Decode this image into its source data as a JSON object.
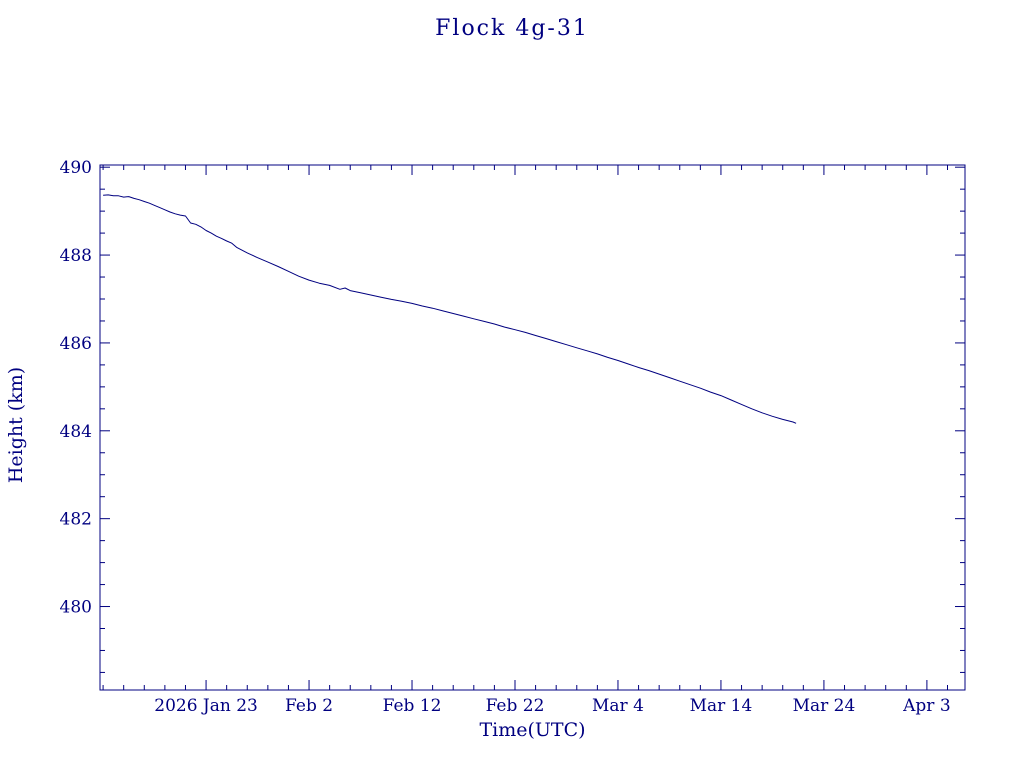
{
  "chart_data": {
    "type": "line",
    "title": "Flock 4g-31",
    "xlabel": "Time(UTC)",
    "ylabel": "Height (km)",
    "color": "#000080",
    "x_unit": "days since first plotted point (approx 2026 Jan 13)",
    "xlim": [
      -0.3,
      83.7
    ],
    "ylim": [
      478.1,
      490.05
    ],
    "x_minor_step": 2,
    "y_minor_step": 0.5,
    "y_ticks": [
      480,
      482,
      484,
      486,
      488,
      490
    ],
    "x_ticks": [
      {
        "x": 10,
        "label": "2026 Jan 23"
      },
      {
        "x": 20,
        "label": "Feb 2"
      },
      {
        "x": 30,
        "label": "Feb 12"
      },
      {
        "x": 40,
        "label": "Feb 22"
      },
      {
        "x": 50,
        "label": "Mar 4"
      },
      {
        "x": 60,
        "label": "Mar 14"
      },
      {
        "x": 70,
        "label": "Mar 24"
      },
      {
        "x": 80,
        "label": "Apr 3"
      }
    ],
    "x": [
      0,
      0.5,
      1,
      1.5,
      2,
      2.5,
      3,
      3.5,
      4,
      4.5,
      5,
      5.5,
      6,
      6.5,
      7,
      7.5,
      8,
      8.5,
      9,
      9.5,
      10,
      10.5,
      11,
      11.5,
      12,
      12.5,
      13,
      14,
      15,
      16,
      17,
      18,
      19,
      20,
      21,
      22,
      23,
      23.5,
      24,
      25,
      26,
      27,
      28,
      29,
      30,
      31,
      32,
      33,
      34,
      35,
      36,
      37,
      38,
      39,
      40,
      41,
      42,
      43,
      44,
      45,
      46,
      47,
      48,
      49,
      50,
      51,
      52,
      53,
      54,
      55,
      56,
      57,
      58,
      59,
      60,
      61,
      62,
      63,
      64,
      65,
      66,
      67,
      67.3
    ],
    "y": [
      489.36,
      489.37,
      489.35,
      489.35,
      489.32,
      489.33,
      489.29,
      489.26,
      489.22,
      489.18,
      489.13,
      489.08,
      489.03,
      488.98,
      488.94,
      488.91,
      488.89,
      488.73,
      488.7,
      488.64,
      488.56,
      488.5,
      488.43,
      488.38,
      488.32,
      488.27,
      488.17,
      488.05,
      487.94,
      487.84,
      487.74,
      487.63,
      487.52,
      487.43,
      487.36,
      487.31,
      487.22,
      487.25,
      487.19,
      487.14,
      487.09,
      487.04,
      486.99,
      486.95,
      486.9,
      486.84,
      486.79,
      486.73,
      486.67,
      486.61,
      486.55,
      486.49,
      486.43,
      486.36,
      486.3,
      486.24,
      486.17,
      486.1,
      486.03,
      485.96,
      485.89,
      485.82,
      485.75,
      485.67,
      485.6,
      485.52,
      485.44,
      485.37,
      485.29,
      485.21,
      485.13,
      485.05,
      484.97,
      484.88,
      484.8,
      484.7,
      484.6,
      484.5,
      484.41,
      484.33,
      484.26,
      484.2,
      484.17
    ]
  }
}
